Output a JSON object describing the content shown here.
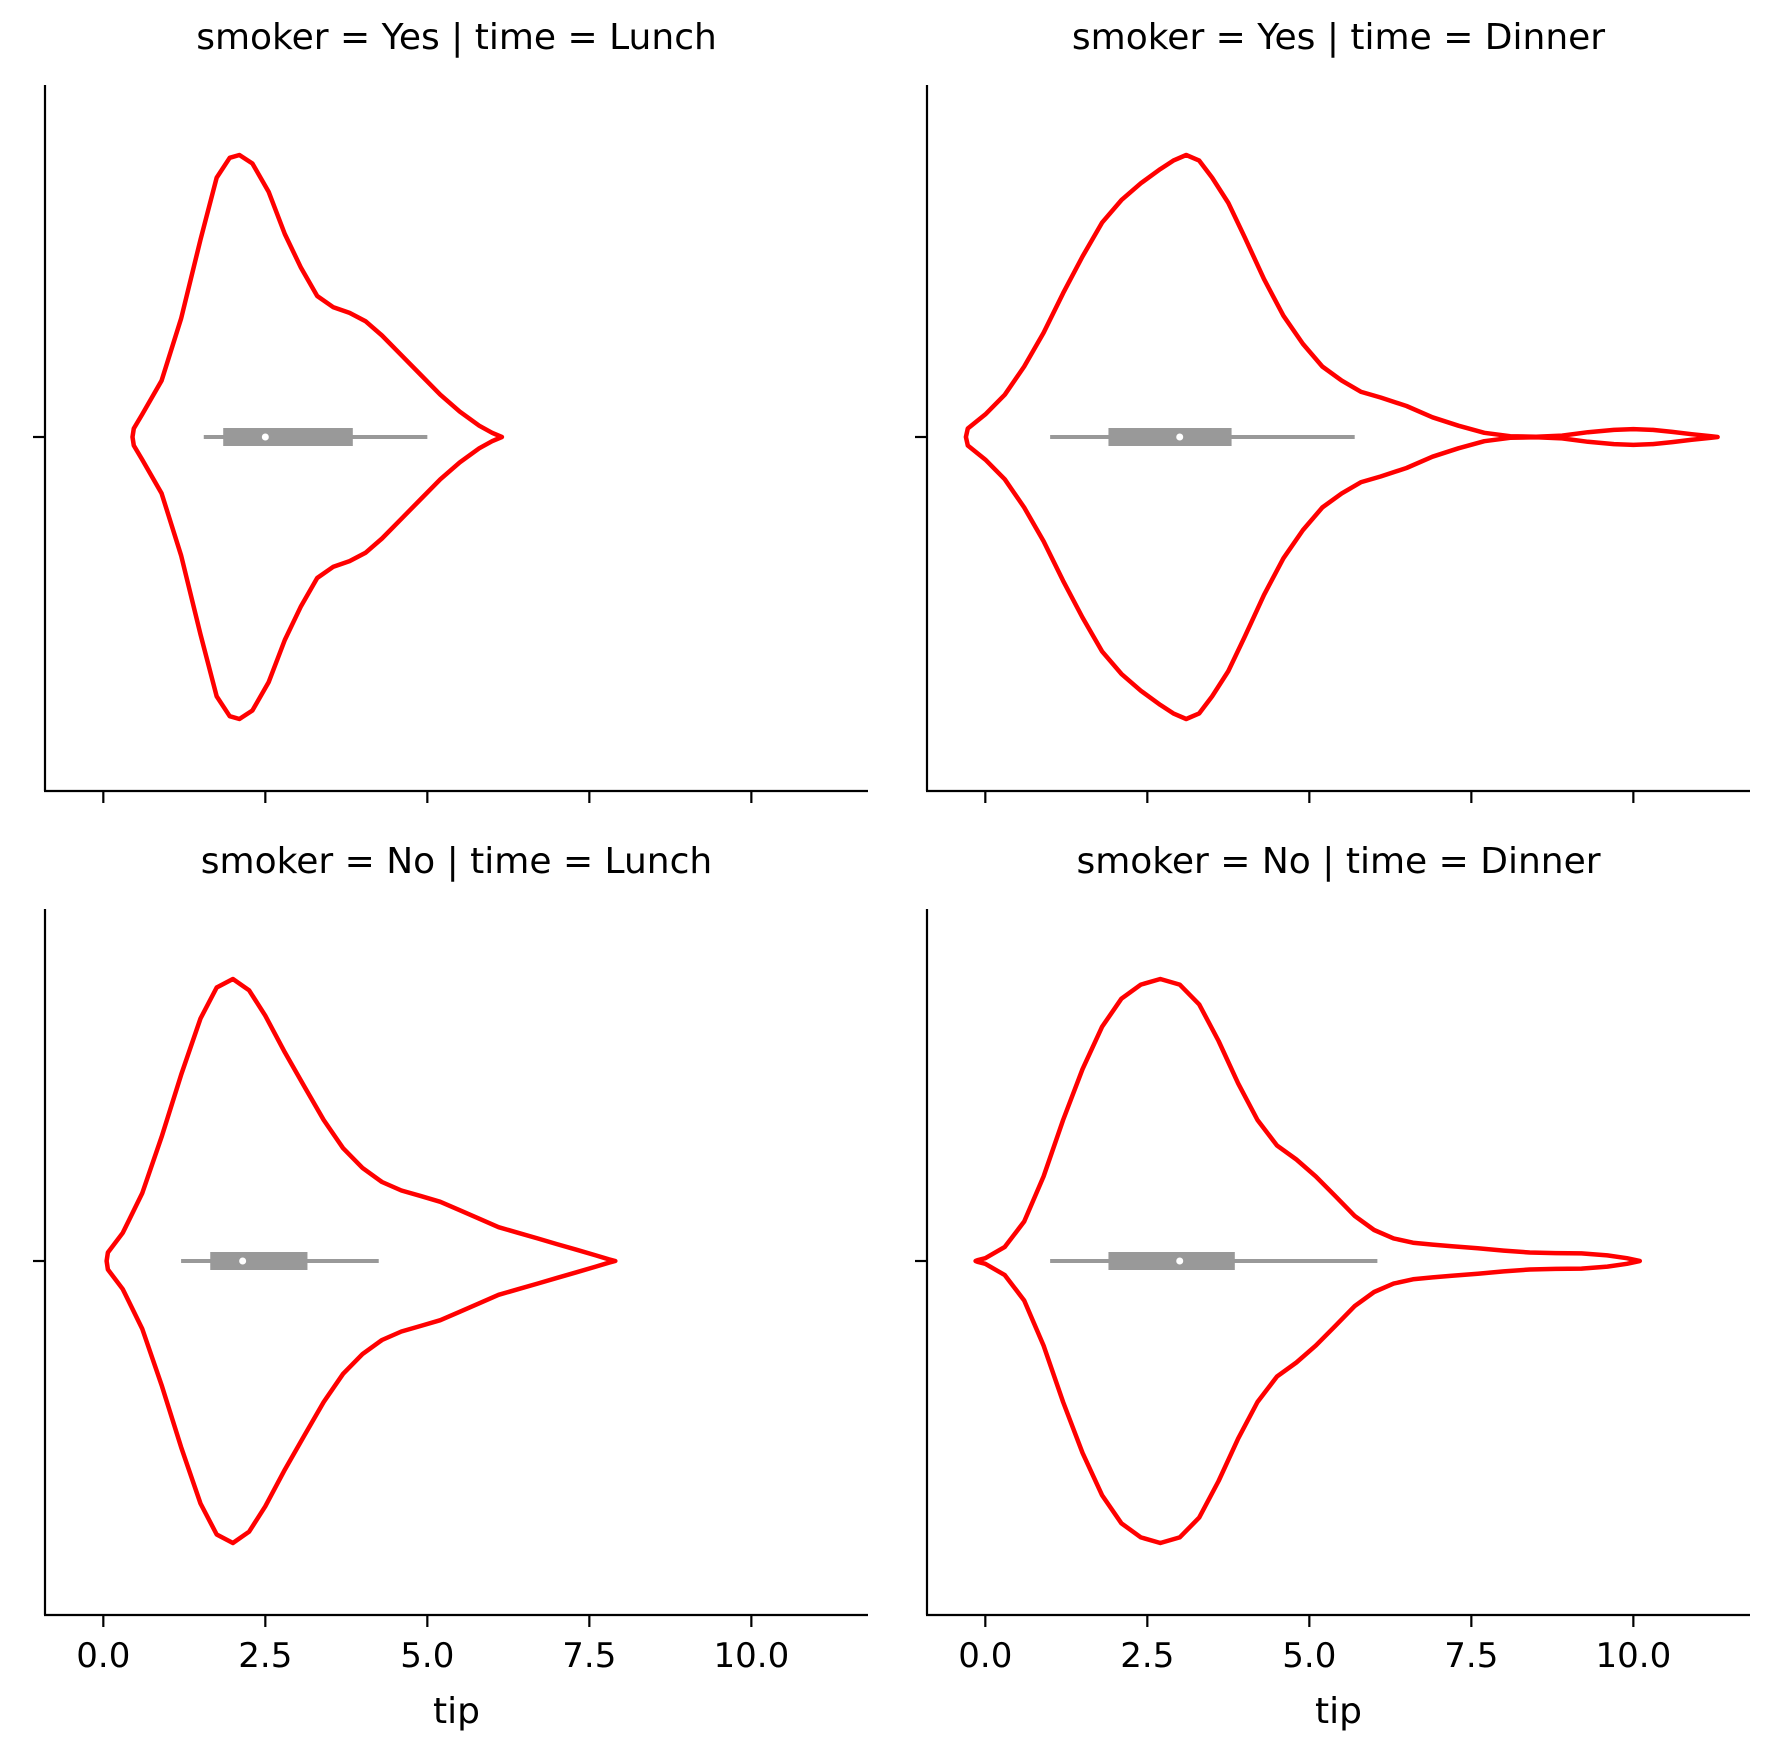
{
  "chart_data": [
    {
      "type": "violin",
      "title": "smoker = Yes | time = Lunch",
      "xlabel": "",
      "xlim": [
        -0.9,
        11.8
      ],
      "xticks": [
        0.0,
        2.5,
        5.0,
        7.5,
        10.0
      ],
      "xtick_labels": [],
      "violin": {
        "profile": [
          [
            0.45,
            0.0
          ],
          [
            0.47,
            0.03
          ],
          [
            0.6,
            0.08
          ],
          [
            0.9,
            0.2
          ],
          [
            1.2,
            0.42
          ],
          [
            1.5,
            0.7
          ],
          [
            1.75,
            0.92
          ],
          [
            1.95,
            0.99
          ],
          [
            2.1,
            1.0
          ],
          [
            2.3,
            0.97
          ],
          [
            2.55,
            0.87
          ],
          [
            2.8,
            0.72
          ],
          [
            3.05,
            0.6
          ],
          [
            3.3,
            0.5
          ],
          [
            3.55,
            0.46
          ],
          [
            3.8,
            0.44
          ],
          [
            4.05,
            0.41
          ],
          [
            4.3,
            0.36
          ],
          [
            4.6,
            0.29
          ],
          [
            4.9,
            0.22
          ],
          [
            5.2,
            0.15
          ],
          [
            5.5,
            0.09
          ],
          [
            5.8,
            0.04
          ],
          [
            6.0,
            0.015
          ],
          [
            6.15,
            0.0
          ]
        ],
        "whisker": [
          1.55,
          5.0
        ],
        "box": [
          1.85,
          3.85
        ],
        "median": 2.5
      }
    },
    {
      "type": "violin",
      "title": "smoker = Yes | time = Dinner",
      "xlabel": "",
      "xlim": [
        -0.9,
        11.8
      ],
      "xticks": [
        0.0,
        2.5,
        5.0,
        7.5,
        10.0
      ],
      "xtick_labels": [],
      "violin": {
        "profile": [
          [
            -0.3,
            0.0
          ],
          [
            -0.27,
            0.03
          ],
          [
            0.0,
            0.08
          ],
          [
            0.3,
            0.15
          ],
          [
            0.6,
            0.25
          ],
          [
            0.9,
            0.37
          ],
          [
            1.2,
            0.51
          ],
          [
            1.5,
            0.64
          ],
          [
            1.8,
            0.76
          ],
          [
            2.1,
            0.84
          ],
          [
            2.4,
            0.9
          ],
          [
            2.7,
            0.95
          ],
          [
            2.9,
            0.98
          ],
          [
            3.1,
            1.0
          ],
          [
            3.3,
            0.98
          ],
          [
            3.5,
            0.92
          ],
          [
            3.75,
            0.83
          ],
          [
            4.0,
            0.71
          ],
          [
            4.3,
            0.56
          ],
          [
            4.6,
            0.43
          ],
          [
            4.9,
            0.33
          ],
          [
            5.2,
            0.25
          ],
          [
            5.5,
            0.2
          ],
          [
            5.8,
            0.16
          ],
          [
            6.1,
            0.14
          ],
          [
            6.5,
            0.11
          ],
          [
            6.9,
            0.07
          ],
          [
            7.3,
            0.04
          ],
          [
            7.7,
            0.015
          ],
          [
            8.1,
            0.003
          ],
          [
            8.5,
            0.001
          ],
          [
            8.9,
            0.005
          ],
          [
            9.3,
            0.017
          ],
          [
            9.7,
            0.025
          ],
          [
            10.0,
            0.028
          ],
          [
            10.3,
            0.025
          ],
          [
            10.6,
            0.018
          ],
          [
            10.9,
            0.01
          ],
          [
            11.2,
            0.003
          ],
          [
            11.3,
            0.0
          ]
        ],
        "whisker": [
          1.0,
          5.7
        ],
        "box": [
          1.9,
          3.8
        ],
        "median": 3.0
      }
    },
    {
      "type": "violin",
      "title": "smoker = No | time = Lunch",
      "xlabel": "tip",
      "xlim": [
        -0.9,
        11.8
      ],
      "xticks": [
        0.0,
        2.5,
        5.0,
        7.5,
        10.0
      ],
      "xtick_labels": [
        "0.0",
        "2.5",
        "5.0",
        "7.5",
        "10.0"
      ],
      "violin": {
        "profile": [
          [
            0.05,
            0.0
          ],
          [
            0.07,
            0.03
          ],
          [
            0.3,
            0.1
          ],
          [
            0.6,
            0.24
          ],
          [
            0.9,
            0.44
          ],
          [
            1.2,
            0.66
          ],
          [
            1.5,
            0.86
          ],
          [
            1.75,
            0.97
          ],
          [
            2.0,
            1.0
          ],
          [
            2.25,
            0.96
          ],
          [
            2.5,
            0.87
          ],
          [
            2.8,
            0.74
          ],
          [
            3.1,
            0.62
          ],
          [
            3.4,
            0.5
          ],
          [
            3.7,
            0.4
          ],
          [
            4.0,
            0.33
          ],
          [
            4.3,
            0.28
          ],
          [
            4.6,
            0.25
          ],
          [
            4.9,
            0.23
          ],
          [
            5.2,
            0.21
          ],
          [
            5.5,
            0.18
          ],
          [
            5.8,
            0.15
          ],
          [
            6.1,
            0.12
          ],
          [
            6.4,
            0.1
          ],
          [
            6.7,
            0.08
          ],
          [
            7.0,
            0.06
          ],
          [
            7.3,
            0.04
          ],
          [
            7.6,
            0.02
          ],
          [
            7.8,
            0.006
          ],
          [
            7.9,
            0.0
          ]
        ],
        "whisker": [
          1.2,
          4.25
        ],
        "box": [
          1.65,
          3.15
        ],
        "median": 2.15
      }
    },
    {
      "type": "violin",
      "title": "smoker = No | time = Dinner",
      "xlabel": "tip",
      "xlim": [
        -0.9,
        11.8
      ],
      "xticks": [
        0.0,
        2.5,
        5.0,
        7.5,
        10.0
      ],
      "xtick_labels": [
        "0.0",
        "2.5",
        "5.0",
        "7.5",
        "10.0"
      ],
      "violin": {
        "profile": [
          [
            -0.15,
            0.0
          ],
          [
            -0.12,
            0.003
          ],
          [
            0.0,
            0.01
          ],
          [
            0.3,
            0.05
          ],
          [
            0.6,
            0.14
          ],
          [
            0.9,
            0.3
          ],
          [
            1.2,
            0.5
          ],
          [
            1.5,
            0.68
          ],
          [
            1.8,
            0.83
          ],
          [
            2.1,
            0.93
          ],
          [
            2.4,
            0.98
          ],
          [
            2.7,
            1.0
          ],
          [
            3.0,
            0.98
          ],
          [
            3.3,
            0.91
          ],
          [
            3.6,
            0.78
          ],
          [
            3.9,
            0.63
          ],
          [
            4.2,
            0.5
          ],
          [
            4.5,
            0.41
          ],
          [
            4.8,
            0.36
          ],
          [
            5.1,
            0.3
          ],
          [
            5.4,
            0.23
          ],
          [
            5.7,
            0.16
          ],
          [
            6.0,
            0.11
          ],
          [
            6.3,
            0.08
          ],
          [
            6.6,
            0.065
          ],
          [
            6.9,
            0.058
          ],
          [
            7.2,
            0.052
          ],
          [
            7.6,
            0.045
          ],
          [
            8.0,
            0.037
          ],
          [
            8.4,
            0.03
          ],
          [
            8.8,
            0.028
          ],
          [
            9.2,
            0.027
          ],
          [
            9.6,
            0.02
          ],
          [
            9.9,
            0.01
          ],
          [
            10.1,
            0.0
          ]
        ],
        "whisker": [
          1.0,
          6.05
        ],
        "box": [
          1.9,
          3.85
        ],
        "median": 3.0
      }
    }
  ],
  "colors": {
    "violin_line": "#ff0000",
    "box_fill": "#999999",
    "median_dot": "#ffffff",
    "axis": "#000000"
  }
}
